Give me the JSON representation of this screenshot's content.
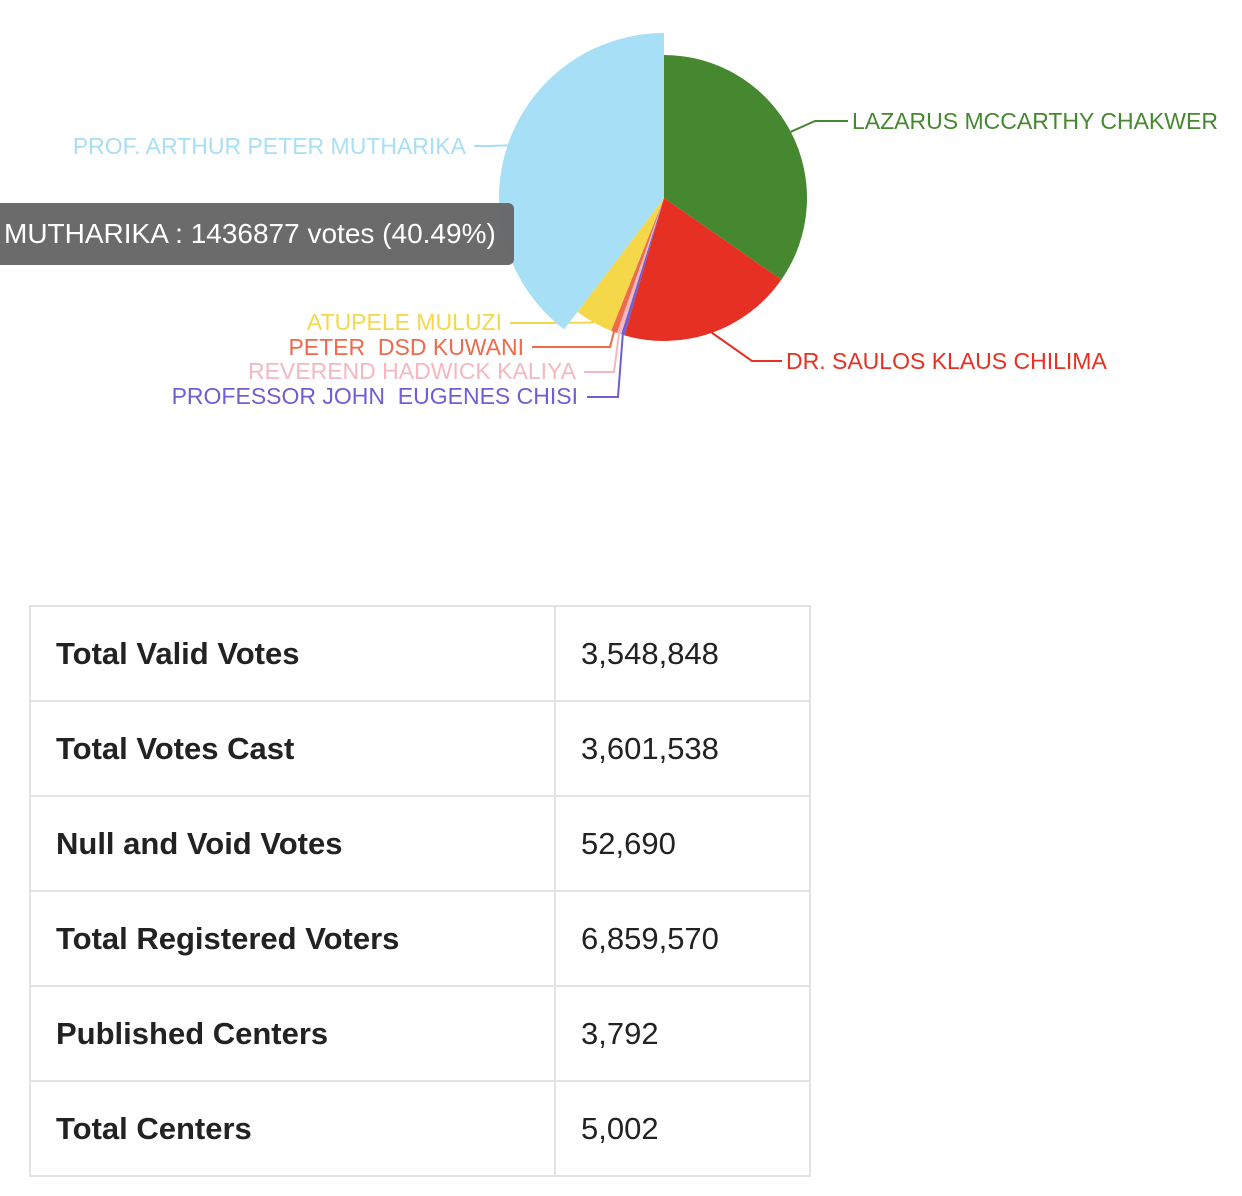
{
  "chart_data": {
    "type": "pie",
    "slices": [
      {
        "label": "LAZARUS MCCARTHY CHAKWER",
        "value": 35.4,
        "color": "#46882f"
      },
      {
        "label": "DR. SAULOS KLAUS CHILIMA",
        "value": 20.2,
        "color": "#e63024"
      },
      {
        "label": "PROFESSOR JOHN  EUGENES CHISI",
        "value": 0.4,
        "color": "#6f5fd4"
      },
      {
        "label": "REVEREND HADWICK KALIYA",
        "value": 0.5,
        "color": "#f4b8c0"
      },
      {
        "label": "PETER  DSD KUWANI",
        "value": 0.7,
        "color": "#ee6a4a"
      },
      {
        "label": "ATUPELE MULUZI",
        "value": 4.4,
        "color": "#f5d84a"
      },
      {
        "label": "PROF. ARTHUR PETER MUTHARIKA",
        "value": 40.49,
        "color": "#a7dff6",
        "highlighted": true
      }
    ],
    "tooltip": "MUTHARIKA : 1436877 votes (40.49%)"
  },
  "stats": {
    "rows": [
      {
        "label": "Total Valid Votes",
        "value": "3,548,848"
      },
      {
        "label": "Total Votes Cast",
        "value": "3,601,538"
      },
      {
        "label": "Null and Void Votes",
        "value": "52,690"
      },
      {
        "label": "Total Registered Voters",
        "value": "6,859,570"
      },
      {
        "label": "Published Centers",
        "value": "3,792"
      },
      {
        "label": "Total Centers",
        "value": "5,002"
      }
    ]
  }
}
